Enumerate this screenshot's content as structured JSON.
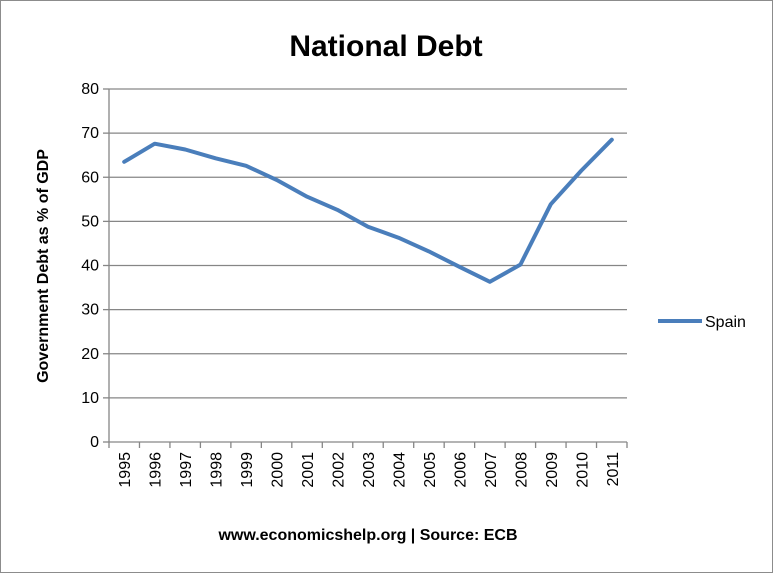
{
  "chart_data": {
    "type": "line",
    "title": "National Debt",
    "xlabel": "www.economicshelp.org | Source: ECB",
    "ylabel": "Government Debt as % of GDP",
    "ylim": [
      0,
      80
    ],
    "yticks": [
      0,
      10,
      20,
      30,
      40,
      50,
      60,
      70,
      80
    ],
    "grid": true,
    "legend_position": "right",
    "categories": [
      "1995",
      "1996",
      "1997",
      "1998",
      "1999",
      "2000",
      "2001",
      "2002",
      "2003",
      "2004",
      "2005",
      "2006",
      "2007",
      "2008",
      "2009",
      "2010",
      "2011"
    ],
    "series": [
      {
        "name": "Spain",
        "color": "#4a7ebb",
        "values": [
          63.5,
          67.6,
          66.3,
          64.3,
          62.6,
          59.4,
          55.6,
          52.6,
          48.8,
          46.3,
          43.2,
          39.7,
          36.3,
          40.2,
          53.9,
          61.5,
          68.5
        ]
      }
    ]
  }
}
